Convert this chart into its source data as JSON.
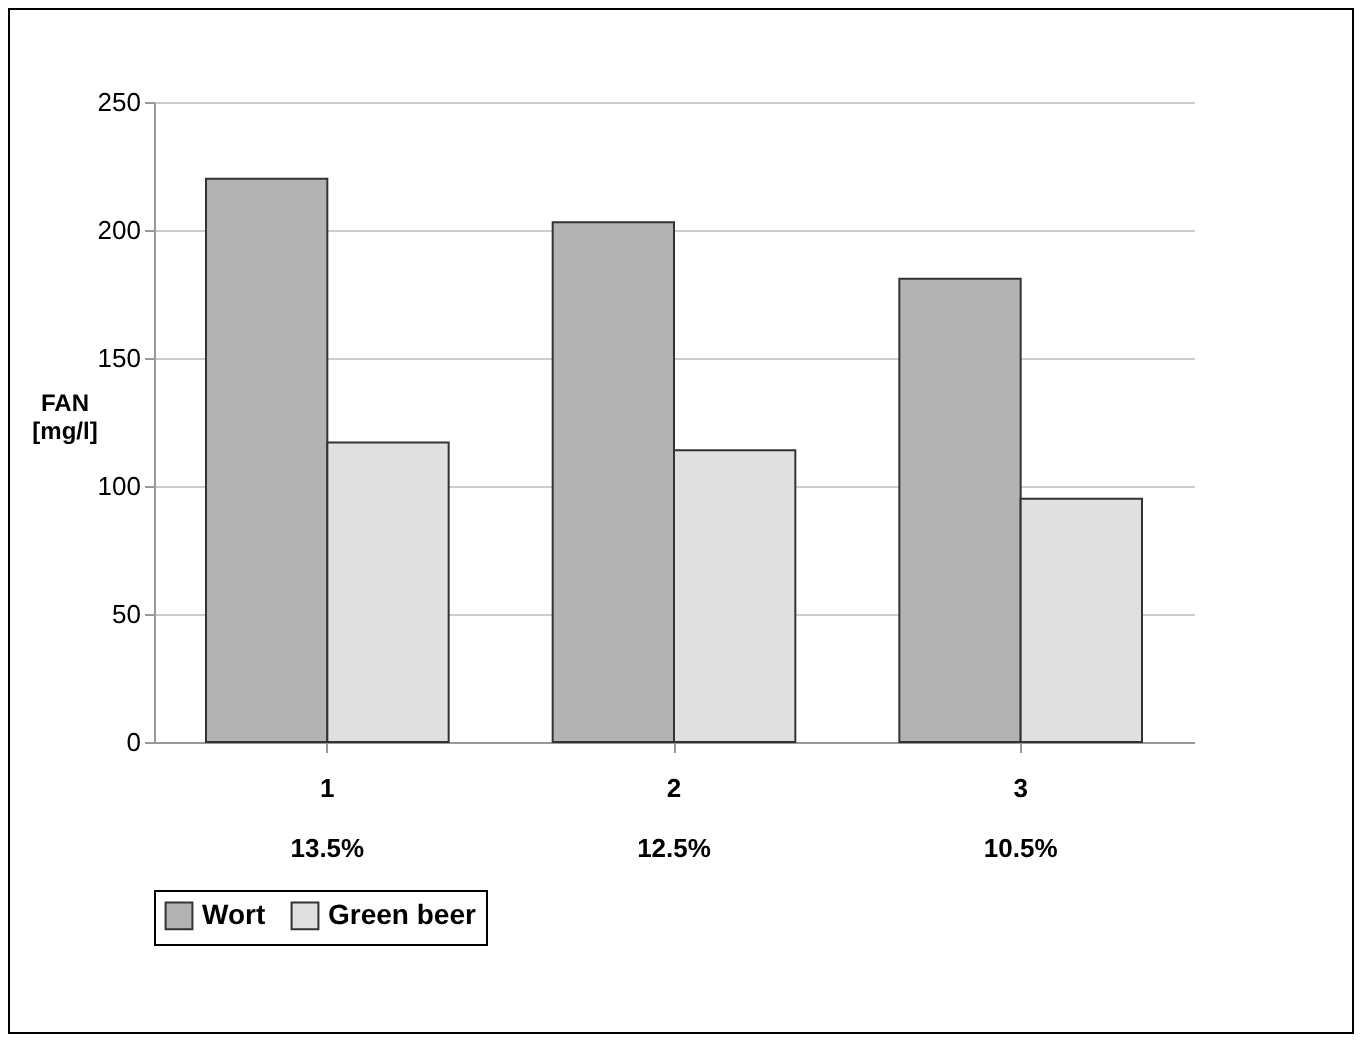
{
  "chart_data": {
    "type": "bar",
    "ylabel": "FAN\n[mg/l]",
    "categories": [
      "1\n13.5%",
      "2\n12.5%",
      "3\n10.5%"
    ],
    "series": [
      {
        "name": "Wort",
        "color": "#b3b3b3",
        "values": [
          220,
          203,
          181
        ]
      },
      {
        "name": "Green beer",
        "color": "#e0e0e0",
        "values": [
          117,
          114,
          95
        ]
      }
    ],
    "ylim": [
      0,
      250
    ],
    "yticks": [
      0,
      50,
      100,
      150,
      200,
      250
    ],
    "grid": "y",
    "legend": "bottom"
  }
}
